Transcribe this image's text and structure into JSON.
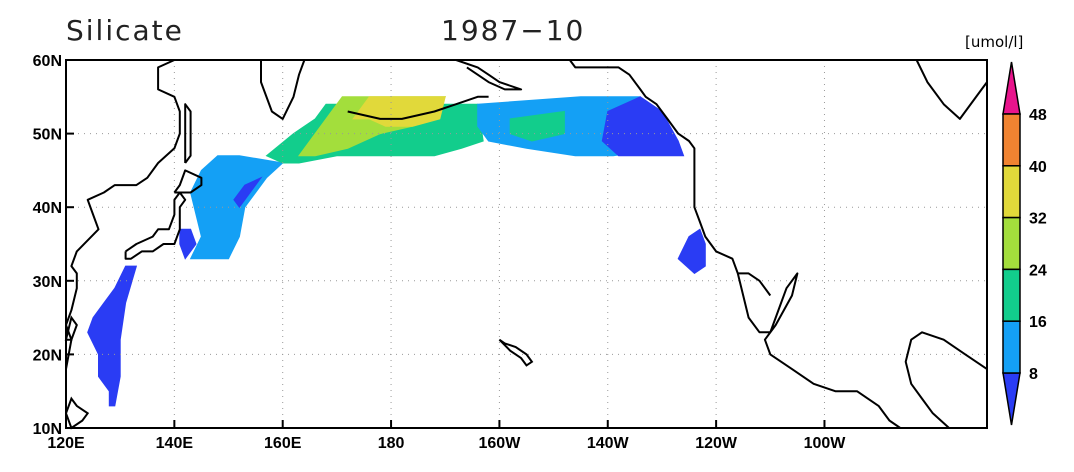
{
  "title": "Silicate",
  "date": "1987−10",
  "units": "[umol/l]",
  "map": {
    "lon_range": [
      120,
      290
    ],
    "lat_range": [
      10,
      60
    ],
    "x_ticks": [
      {
        "lon": 120,
        "label": "120E"
      },
      {
        "lon": 140,
        "label": "140E"
      },
      {
        "lon": 160,
        "label": "160E"
      },
      {
        "lon": 180,
        "label": "180"
      },
      {
        "lon": 200,
        "label": "160W"
      },
      {
        "lon": 220,
        "label": "140W"
      },
      {
        "lon": 240,
        "label": "120W"
      },
      {
        "lon": 260,
        "label": "100W"
      }
    ],
    "y_ticks": [
      {
        "lat": 10,
        "label": "10N"
      },
      {
        "lat": 20,
        "label": "20N"
      },
      {
        "lat": 30,
        "label": "30N"
      },
      {
        "lat": 40,
        "label": "40N"
      },
      {
        "lat": 50,
        "label": "50N"
      },
      {
        "lat": 60,
        "label": "60N"
      }
    ],
    "grid": "dotted"
  },
  "colorbar": {
    "levels": [
      "8",
      "16",
      "24",
      "32",
      "40",
      "48"
    ],
    "colors": [
      "#2a3cf4",
      "#14a0f5",
      "#12cd8c",
      "#a3de3c",
      "#e1d93a",
      "#f08331",
      "#e8148c"
    ],
    "extend": "both"
  },
  "fields": [
    {
      "name": "kuroshio-east",
      "color": "#2a3cf4",
      "lonlat": [
        [
          128,
          13
        ],
        [
          129,
          13
        ],
        [
          130,
          17
        ],
        [
          130,
          22
        ],
        [
          131,
          27
        ],
        [
          133,
          32
        ],
        [
          131,
          32
        ],
        [
          129,
          29
        ],
        [
          127,
          27
        ],
        [
          125,
          25
        ],
        [
          124,
          23
        ],
        [
          126,
          20
        ],
        [
          126,
          17
        ],
        [
          128,
          15
        ]
      ]
    },
    {
      "name": "honshu-south",
      "color": "#2a3cf4",
      "lonlat": [
        [
          142,
          33
        ],
        [
          144,
          35
        ],
        [
          143,
          37
        ],
        [
          141,
          37
        ],
        [
          141,
          35
        ]
      ]
    },
    {
      "name": "baja-offshore",
      "color": "#2a3cf4",
      "lonlat": [
        [
          236,
          31
        ],
        [
          238,
          32
        ],
        [
          238,
          35
        ],
        [
          237,
          37
        ],
        [
          235,
          36
        ],
        [
          233,
          33
        ]
      ]
    },
    {
      "name": "japan-east",
      "color": "#14a0f5",
      "lonlat": [
        [
          143,
          33
        ],
        [
          146,
          33
        ],
        [
          150,
          33
        ],
        [
          152,
          36
        ],
        [
          153,
          40
        ],
        [
          157,
          44
        ],
        [
          160,
          46
        ],
        [
          152,
          47
        ],
        [
          148,
          47
        ],
        [
          145,
          45
        ],
        [
          143,
          42
        ],
        [
          144,
          39
        ],
        [
          145,
          36
        ]
      ]
    },
    {
      "name": "japan-east-inner",
      "color": "#2a3cf4",
      "lonlat": [
        [
          152,
          40
        ],
        [
          154,
          42
        ],
        [
          156,
          44
        ],
        [
          153,
          43
        ],
        [
          151,
          41
        ]
      ]
    },
    {
      "name": "central-north",
      "color": "#12cd8c",
      "lonlat": [
        [
          157,
          47
        ],
        [
          162,
          50
        ],
        [
          166,
          52
        ],
        [
          168,
          54
        ],
        [
          181,
          54
        ],
        [
          185,
          54
        ],
        [
          196,
          54
        ],
        [
          197,
          49
        ],
        [
          193,
          48
        ],
        [
          188,
          47
        ],
        [
          178,
          47
        ],
        [
          170,
          47
        ],
        [
          163,
          46
        ],
        [
          160,
          46
        ]
      ]
    },
    {
      "name": "central-green",
      "color": "#a3de3c",
      "lonlat": [
        [
          163,
          47
        ],
        [
          168,
          52
        ],
        [
          171,
          55
        ],
        [
          190,
          55
        ],
        [
          188,
          52
        ],
        [
          184,
          51
        ],
        [
          178,
          50
        ],
        [
          172,
          48
        ],
        [
          166,
          47
        ]
      ]
    },
    {
      "name": "central-yellow",
      "color": "#e1d93a",
      "lonlat": [
        [
          173,
          52
        ],
        [
          176,
          55
        ],
        [
          190,
          55
        ],
        [
          189,
          52
        ],
        [
          184,
          51
        ],
        [
          179,
          51
        ],
        [
          176,
          52
        ]
      ]
    },
    {
      "name": "gulf-light",
      "color": "#14a0f5",
      "lonlat": [
        [
          196,
          54
        ],
        [
          215,
          55
        ],
        [
          226,
          55
        ],
        [
          228,
          53
        ],
        [
          230,
          50
        ],
        [
          231,
          48
        ],
        [
          221,
          47
        ],
        [
          214,
          47
        ],
        [
          205,
          48
        ],
        [
          198,
          49
        ],
        [
          196,
          51
        ]
      ]
    },
    {
      "name": "gulf-green",
      "color": "#12cd8c",
      "lonlat": [
        [
          202,
          52
        ],
        [
          212,
          53
        ],
        [
          212,
          50
        ],
        [
          206,
          49
        ],
        [
          202,
          50
        ]
      ]
    },
    {
      "name": "gulf-east",
      "color": "#2a3cf4",
      "lonlat": [
        [
          220,
          53
        ],
        [
          226,
          55
        ],
        [
          230,
          53
        ],
        [
          233,
          49
        ],
        [
          234,
          47
        ],
        [
          230,
          47
        ],
        [
          222,
          47
        ],
        [
          219,
          49
        ]
      ]
    }
  ],
  "coastlines": [
    {
      "name": "asia-mainland",
      "lonlat": [
        [
          120,
          14
        ],
        [
          120,
          18
        ],
        [
          121,
          22
        ],
        [
          120,
          24
        ],
        [
          121,
          26
        ],
        [
          122,
          29
        ],
        [
          122,
          31
        ],
        [
          121,
          32
        ],
        [
          122,
          34
        ],
        [
          126,
          37
        ],
        [
          125,
          39
        ],
        [
          124,
          41
        ],
        [
          127,
          42
        ],
        [
          129,
          43
        ],
        [
          131,
          43
        ],
        [
          133,
          43
        ],
        [
          135,
          44
        ],
        [
          137,
          46
        ],
        [
          140,
          48
        ],
        [
          141,
          50
        ],
        [
          141,
          53
        ],
        [
          140,
          55
        ],
        [
          137,
          56
        ],
        [
          137,
          59
        ],
        [
          140,
          60
        ]
      ]
    },
    {
      "name": "kamchatka",
      "lonlat": [
        [
          156,
          60
        ],
        [
          156,
          57
        ],
        [
          158,
          53
        ],
        [
          160,
          52
        ],
        [
          162,
          55
        ],
        [
          163,
          58
        ],
        [
          164,
          60
        ]
      ]
    },
    {
      "name": "japan-honshu",
      "lonlat": [
        [
          131,
          34
        ],
        [
          131,
          33
        ],
        [
          132,
          33
        ],
        [
          134,
          34
        ],
        [
          136,
          34
        ],
        [
          138,
          35
        ],
        [
          140,
          35
        ],
        [
          141,
          37
        ],
        [
          141,
          40
        ],
        [
          142,
          41
        ],
        [
          141,
          42
        ],
        [
          140,
          41
        ],
        [
          140,
          39
        ],
        [
          139,
          37
        ],
        [
          137,
          37
        ],
        [
          136,
          36
        ],
        [
          133,
          35
        ],
        [
          131,
          34
        ]
      ]
    },
    {
      "name": "japan-hokkaido",
      "lonlat": [
        [
          140,
          42
        ],
        [
          141,
          43
        ],
        [
          142,
          45
        ],
        [
          145,
          44
        ],
        [
          145,
          43
        ],
        [
          143,
          42
        ],
        [
          141,
          42
        ],
        [
          140,
          42
        ]
      ]
    },
    {
      "name": "sakhalin",
      "lonlat": [
        [
          142,
          46
        ],
        [
          143,
          47
        ],
        [
          143,
          50
        ],
        [
          143,
          53
        ],
        [
          142,
          54
        ],
        [
          142,
          52
        ],
        [
          142,
          49
        ],
        [
          142,
          46
        ]
      ]
    },
    {
      "name": "alaska-west",
      "lonlat": [
        [
          192,
          60
        ],
        [
          196,
          59
        ],
        [
          198,
          58
        ],
        [
          200,
          57
        ],
        [
          204,
          56
        ],
        [
          201,
          56
        ],
        [
          198,
          57
        ],
        [
          196,
          58
        ],
        [
          194,
          59
        ]
      ]
    },
    {
      "name": "aleutians",
      "lonlat": [
        [
          172,
          53
        ],
        [
          178,
          52
        ],
        [
          182,
          52
        ],
        [
          188,
          53
        ],
        [
          192,
          54
        ],
        [
          196,
          55
        ],
        [
          198,
          55
        ]
      ]
    },
    {
      "name": "north-america",
      "lonlat": [
        [
          213,
          60
        ],
        [
          214,
          59
        ],
        [
          218,
          59
        ],
        [
          222,
          59
        ],
        [
          224,
          58
        ],
        [
          226,
          56
        ],
        [
          227,
          55
        ],
        [
          229,
          54
        ],
        [
          231,
          52
        ],
        [
          233,
          50
        ],
        [
          235,
          49
        ],
        [
          236,
          48
        ],
        [
          236,
          46
        ],
        [
          236,
          43
        ],
        [
          236,
          40
        ],
        [
          237,
          38
        ],
        [
          238,
          36
        ],
        [
          240,
          34
        ],
        [
          243,
          33
        ],
        [
          244,
          31
        ],
        [
          245,
          28
        ],
        [
          246,
          25
        ],
        [
          248,
          23
        ],
        [
          250,
          23
        ],
        [
          251,
          25
        ],
        [
          252,
          27
        ],
        [
          253,
          29
        ],
        [
          255,
          31
        ],
        [
          254,
          28
        ],
        [
          251,
          24
        ],
        [
          249,
          22
        ],
        [
          250,
          20
        ],
        [
          254,
          18
        ],
        [
          258,
          16
        ],
        [
          262,
          15
        ],
        [
          266,
          15
        ],
        [
          268,
          14
        ],
        [
          270,
          13
        ],
        [
          272,
          11
        ],
        [
          274,
          10
        ]
      ]
    },
    {
      "name": "baja-gulf",
      "lonlat": [
        [
          244,
          31
        ],
        [
          246,
          31
        ],
        [
          248,
          30
        ],
        [
          250,
          28
        ]
      ]
    },
    {
      "name": "caribbean-coast",
      "lonlat": [
        [
          290,
          18
        ],
        [
          286,
          20
        ],
        [
          282,
          22
        ],
        [
          278,
          23
        ],
        [
          276,
          22
        ],
        [
          275,
          19
        ],
        [
          276,
          16
        ],
        [
          278,
          14
        ],
        [
          280,
          12
        ],
        [
          283,
          10
        ]
      ]
    },
    {
      "name": "hudson-coast",
      "lonlat": [
        [
          277,
          60
        ],
        [
          279,
          57
        ],
        [
          282,
          54
        ],
        [
          285,
          52
        ],
        [
          289,
          56
        ],
        [
          290,
          57
        ]
      ]
    }
  ],
  "islands": [
    {
      "name": "hawaii",
      "lonlat": [
        [
          200,
          22
        ],
        [
          201,
          21.5
        ],
        [
          203,
          21
        ],
        [
          205,
          20
        ],
        [
          206,
          19
        ],
        [
          205,
          18.5
        ],
        [
          204,
          19.5
        ],
        [
          202,
          20.5
        ],
        [
          200,
          22
        ]
      ]
    },
    {
      "name": "philippines",
      "lonlat": [
        [
          120,
          12
        ],
        [
          121,
          14
        ],
        [
          122,
          13
        ],
        [
          124,
          12
        ],
        [
          123,
          11
        ],
        [
          121,
          10
        ],
        [
          120,
          12
        ]
      ]
    },
    {
      "name": "taiwan",
      "lonlat": [
        [
          120,
          22
        ],
        [
          121,
          25
        ],
        [
          122,
          24
        ],
        [
          121,
          22
        ],
        [
          120,
          22
        ]
      ]
    }
  ]
}
